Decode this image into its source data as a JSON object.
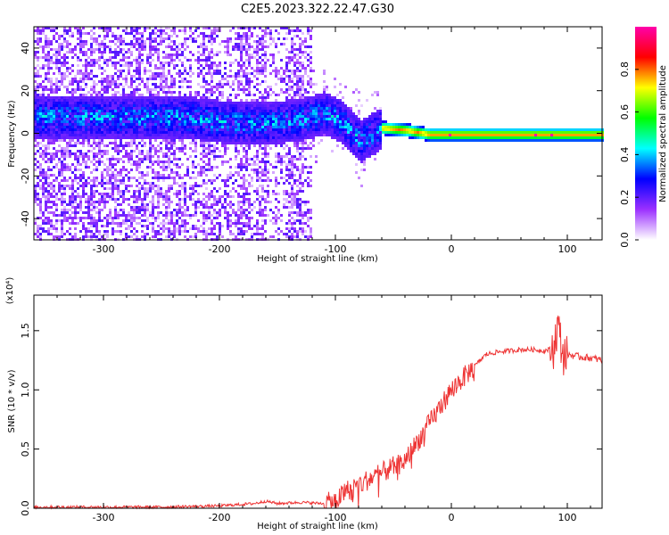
{
  "title": "C2E5.2023.322.22.47.G30",
  "chart_data": [
    {
      "type": "heatmap",
      "xlabel": "Height of straight line (km)",
      "ylabel": "Frequency (Hz)",
      "xlim": [
        -360,
        130
      ],
      "ylim": [
        -50,
        50
      ],
      "x_ticks": [
        "-300",
        "-200",
        "-100",
        "0",
        "100"
      ],
      "x_tick_values": [
        -300,
        -200,
        -100,
        0,
        100
      ],
      "y_ticks": [
        "-40",
        "-20",
        "0",
        "20",
        "40"
      ],
      "y_tick_values": [
        -40,
        -20,
        0,
        20,
        40
      ],
      "colorbar": {
        "label": "Normalized spectral amplitude",
        "range": [
          0,
          1
        ],
        "ticks": [
          "0.0",
          "0.2",
          "0.4",
          "0.6",
          "0.8"
        ],
        "tick_values": [
          0.0,
          0.2,
          0.4,
          0.6,
          0.8
        ],
        "colors": [
          "#ffffff",
          "#9b30ff",
          "#0000ff",
          "#00ffff",
          "#00ff00",
          "#ffff00",
          "#ff0000",
          "#ff00aa"
        ]
      },
      "ridge": {
        "x": [
          -230,
          -200,
          -160,
          -130,
          -110,
          -95,
          -85,
          -78,
          -70,
          -60,
          -40,
          -20,
          0,
          20,
          60,
          100,
          130
        ],
        "y": [
          8,
          6,
          5,
          7,
          10,
          6,
          0,
          -3,
          0,
          3,
          2,
          0,
          0,
          0,
          0,
          0,
          0
        ]
      },
      "grid": false
    },
    {
      "type": "line",
      "xlabel": "Height of straight line (km)",
      "ylabel": "SNR (10 * v/v)",
      "y_multiplier_label": "(x10⁴)",
      "xlim": [
        -360,
        130
      ],
      "ylim": [
        0,
        1.8
      ],
      "x_ticks": [
        "-300",
        "-200",
        "-100",
        "0",
        "100"
      ],
      "x_tick_values": [
        -300,
        -200,
        -100,
        0,
        100
      ],
      "y_ticks": [
        "0.0",
        "0.5",
        "1.0",
        "1.5"
      ],
      "y_tick_values": [
        0.0,
        0.5,
        1.0,
        1.5
      ],
      "color": "#ee3333",
      "series": [
        {
          "x": [
            -360,
            -300,
            -250,
            -200,
            -170,
            -160,
            -150,
            -130,
            -110,
            -100,
            -90,
            -80,
            -70,
            -60,
            -50,
            -40,
            -30,
            -20,
            -10,
            0,
            10,
            20,
            30,
            40,
            50,
            60,
            70,
            80,
            88,
            92,
            96,
            100,
            110,
            120,
            130
          ],
          "values": [
            0.01,
            0.01,
            0.01,
            0.02,
            0.04,
            0.06,
            0.04,
            0.05,
            0.04,
            0.06,
            0.15,
            0.2,
            0.25,
            0.3,
            0.35,
            0.4,
            0.55,
            0.7,
            0.85,
            1.0,
            1.1,
            1.2,
            1.3,
            1.32,
            1.33,
            1.34,
            1.34,
            1.33,
            1.35,
            1.55,
            1.3,
            1.3,
            1.28,
            1.27,
            1.25
          ]
        }
      ],
      "grid": false
    }
  ]
}
